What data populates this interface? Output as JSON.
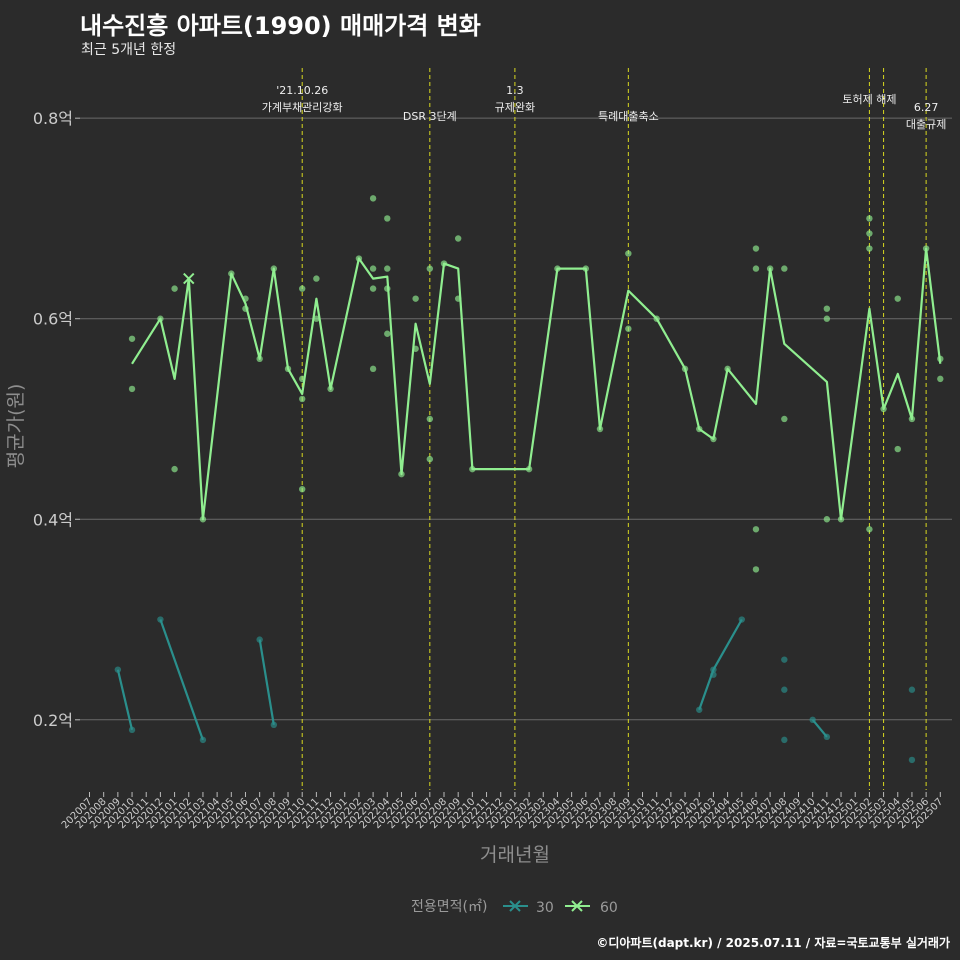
{
  "title": "내수진흥 아파트(1990) 매매가격 변화",
  "subtitle": "최근 5개년 한정",
  "caption": "©디아파트(dapt.kr) / 2025.07.11 / 자료=국토교통부 실거래가",
  "colors": {
    "background": "#2b2b2b",
    "grid": "#6a6a6a",
    "area30": "#2a8f8c",
    "area60": "#90ee90",
    "vline": "#d8d820",
    "text": "#cccccc",
    "axisTitle": "#8e8e8e"
  },
  "chart_data": {
    "type": "line",
    "title": "내수진흥 아파트(1990) 매매가격 변화",
    "xlabel": "거래년월",
    "ylabel": "평균가(원)",
    "ylim": [
      0.13,
      0.86
    ],
    "yticks": [
      {
        "value": 0.2,
        "label": "0.2억"
      },
      {
        "value": 0.4,
        "label": "0.4억"
      },
      {
        "value": 0.6,
        "label": "0.6억"
      },
      {
        "value": 0.8,
        "label": "0.8억"
      }
    ],
    "categories": [
      "202007",
      "202008",
      "202009",
      "202010",
      "202011",
      "202012",
      "202101",
      "202102",
      "202103",
      "202104",
      "202105",
      "202106",
      "202107",
      "202108",
      "202109",
      "202110",
      "202111",
      "202112",
      "202201",
      "202202",
      "202203",
      "202204",
      "202205",
      "202206",
      "202207",
      "202208",
      "202209",
      "202210",
      "202211",
      "202212",
      "202301",
      "202302",
      "202303",
      "202304",
      "202305",
      "202306",
      "202307",
      "202308",
      "202309",
      "202310",
      "202311",
      "202312",
      "202401",
      "202402",
      "202403",
      "202404",
      "202405",
      "202406",
      "202407",
      "202408",
      "202409",
      "202410",
      "202411",
      "202412",
      "202501",
      "202502",
      "202503",
      "202504",
      "202505",
      "202506",
      "202507"
    ],
    "legend": {
      "title": "전용면적(㎡)",
      "entries": [
        "30",
        "60"
      ]
    },
    "series": [
      {
        "name": "30",
        "segments": [
          [
            [
              "202009",
              0.25
            ],
            [
              "202010",
              0.19
            ]
          ],
          [
            [
              "202012",
              0.3
            ],
            [
              "202103",
              0.18
            ]
          ],
          [
            [
              "202107",
              0.28
            ],
            [
              "202108",
              0.195
            ]
          ],
          [
            [
              "202402",
              0.21
            ],
            [
              "202403",
              0.25
            ],
            [
              "202405",
              0.3
            ]
          ],
          [
            [
              "202410",
              0.2
            ],
            [
              "202411",
              0.183
            ]
          ]
        ],
        "points": [
          [
            "202009",
            0.25
          ],
          [
            "202010",
            0.19
          ],
          [
            "202012",
            0.3
          ],
          [
            "202103",
            0.18
          ],
          [
            "202107",
            0.28
          ],
          [
            "202108",
            0.195
          ],
          [
            "202402",
            0.21
          ],
          [
            "202403",
            0.25
          ],
          [
            "202403",
            0.245
          ],
          [
            "202405",
            0.3
          ],
          [
            "202408",
            0.26
          ],
          [
            "202408",
            0.23
          ],
          [
            "202408",
            0.18
          ],
          [
            "202410",
            0.2
          ],
          [
            "202411",
            0.183
          ],
          [
            "202505",
            0.23
          ],
          [
            "202505",
            0.16
          ]
        ],
        "markers": []
      },
      {
        "name": "60",
        "segments": [
          [
            [
              "202010",
              0.555
            ],
            [
              "202012",
              0.6
            ],
            [
              "202101",
              0.54
            ],
            [
              "202102",
              0.64
            ],
            [
              "202103",
              0.4
            ],
            [
              "202105",
              0.645
            ],
            [
              "202106",
              0.615
            ],
            [
              "202107",
              0.56
            ],
            [
              "202108",
              0.65
            ],
            [
              "202109",
              0.55
            ],
            [
              "202110",
              0.525
            ],
            [
              "202111",
              0.62
            ],
            [
              "202112",
              0.53
            ],
            [
              "202202",
              0.66
            ],
            [
              "202203",
              0.64
            ],
            [
              "202204",
              0.642
            ],
            [
              "202205",
              0.445
            ],
            [
              "202206",
              0.595
            ],
            [
              "202207",
              0.535
            ],
            [
              "202208",
              0.655
            ],
            [
              "202209",
              0.65
            ],
            [
              "202210",
              0.45
            ],
            [
              "202302",
              0.45
            ],
            [
              "202304",
              0.65
            ],
            [
              "202306",
              0.65
            ],
            [
              "202307",
              0.49
            ],
            [
              "202309",
              0.628
            ],
            [
              "202311",
              0.6
            ],
            [
              "202401",
              0.55
            ],
            [
              "202402",
              0.49
            ],
            [
              "202403",
              0.48
            ],
            [
              "202404",
              0.55
            ],
            [
              "202406",
              0.515
            ],
            [
              "202407",
              0.65
            ],
            [
              "202408",
              0.575
            ],
            [
              "202411",
              0.537
            ],
            [
              "202412",
              0.4
            ],
            [
              "202502",
              0.61
            ],
            [
              "202503",
              0.51
            ],
            [
              "202504",
              0.545
            ],
            [
              "202505",
              0.5
            ],
            [
              "202506",
              0.67
            ],
            [
              "202507",
              0.555
            ]
          ]
        ],
        "points": [
          [
            "202010",
            0.58
          ],
          [
            "202010",
            0.53
          ],
          [
            "202012",
            0.6
          ],
          [
            "202101",
            0.63
          ],
          [
            "202101",
            0.45
          ],
          [
            "202103",
            0.4
          ],
          [
            "202105",
            0.645
          ],
          [
            "202106",
            0.62
          ],
          [
            "202106",
            0.61
          ],
          [
            "202107",
            0.56
          ],
          [
            "202108",
            0.65
          ],
          [
            "202109",
            0.55
          ],
          [
            "202110",
            0.63
          ],
          [
            "202110",
            0.54
          ],
          [
            "202110",
            0.52
          ],
          [
            "202110",
            0.43
          ],
          [
            "202111",
            0.64
          ],
          [
            "202111",
            0.6
          ],
          [
            "202112",
            0.53
          ],
          [
            "202202",
            0.66
          ],
          [
            "202203",
            0.72
          ],
          [
            "202203",
            0.65
          ],
          [
            "202203",
            0.63
          ],
          [
            "202203",
            0.55
          ],
          [
            "202204",
            0.7
          ],
          [
            "202204",
            0.65
          ],
          [
            "202204",
            0.63
          ],
          [
            "202204",
            0.585
          ],
          [
            "202205",
            0.445
          ],
          [
            "202206",
            0.62
          ],
          [
            "202206",
            0.57
          ],
          [
            "202207",
            0.65
          ],
          [
            "202207",
            0.5
          ],
          [
            "202207",
            0.46
          ],
          [
            "202208",
            0.655
          ],
          [
            "202209",
            0.68
          ],
          [
            "202209",
            0.62
          ],
          [
            "202210",
            0.45
          ],
          [
            "202302",
            0.45
          ],
          [
            "202304",
            0.65
          ],
          [
            "202306",
            0.65
          ],
          [
            "202307",
            0.49
          ],
          [
            "202309",
            0.665
          ],
          [
            "202309",
            0.59
          ],
          [
            "202311",
            0.6
          ],
          [
            "202401",
            0.55
          ],
          [
            "202402",
            0.49
          ],
          [
            "202403",
            0.48
          ],
          [
            "202404",
            0.55
          ],
          [
            "202406",
            0.67
          ],
          [
            "202406",
            0.65
          ],
          [
            "202406",
            0.39
          ],
          [
            "202406",
            0.35
          ],
          [
            "202407",
            0.65
          ],
          [
            "202408",
            0.65
          ],
          [
            "202408",
            0.5
          ],
          [
            "202411",
            0.61
          ],
          [
            "202411",
            0.6
          ],
          [
            "202411",
            0.4
          ],
          [
            "202412",
            0.4
          ],
          [
            "202502",
            0.7
          ],
          [
            "202502",
            0.685
          ],
          [
            "202502",
            0.67
          ],
          [
            "202502",
            0.39
          ],
          [
            "202503",
            0.51
          ],
          [
            "202504",
            0.62
          ],
          [
            "202504",
            0.47
          ],
          [
            "202505",
            0.5
          ],
          [
            "202506",
            0.67
          ],
          [
            "202507",
            0.56
          ],
          [
            "202507",
            0.54
          ]
        ],
        "markers": [
          [
            "202102",
            0.64
          ]
        ]
      }
    ],
    "annotations": [
      {
        "month": "202110",
        "lines": [
          "'21.10.26",
          "가계부채관리강화"
        ]
      },
      {
        "month": "202207",
        "lines": [
          "DSR 3단계"
        ]
      },
      {
        "month": "202301",
        "lines": [
          "1.3",
          "규제완화"
        ]
      },
      {
        "month": "202309",
        "lines": [
          "특례대출축소"
        ]
      },
      {
        "month": "202502",
        "lines": [
          "토허제 해제"
        ]
      },
      {
        "month": "202503",
        "lines": []
      },
      {
        "month": "202506",
        "lines": [
          "6.27",
          "대출규제"
        ]
      }
    ]
  }
}
